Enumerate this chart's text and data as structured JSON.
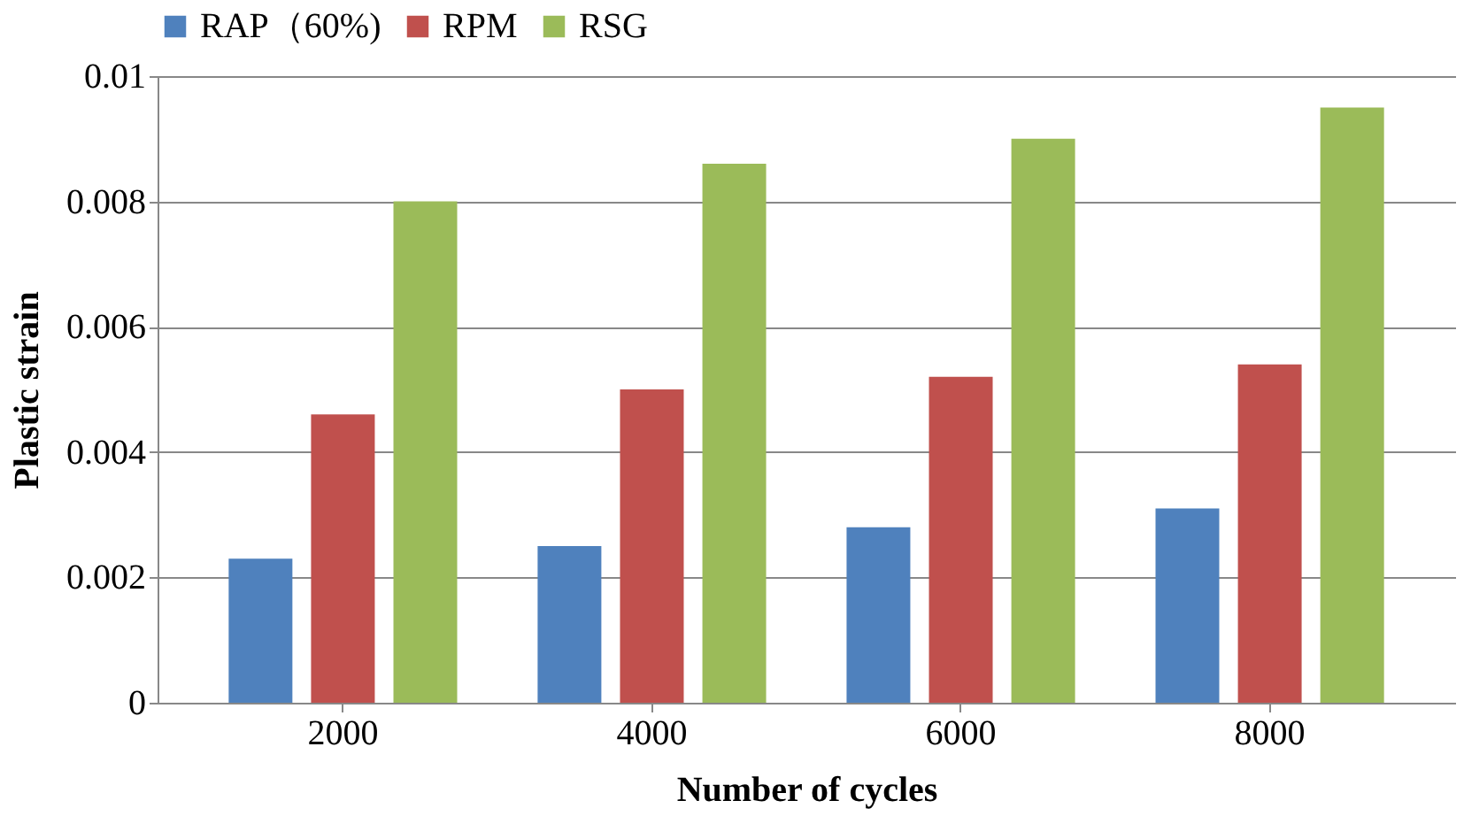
{
  "chart_data": {
    "type": "bar",
    "xlabel": "Number of cycles",
    "ylabel": "Plastic strain",
    "categories": [
      "2000",
      "4000",
      "6000",
      "8000"
    ],
    "series": [
      {
        "name": "RAP（60%)",
        "color": "#4f81bd",
        "values": [
          0.0023,
          0.0025,
          0.0028,
          0.0031
        ]
      },
      {
        "name": "RPM",
        "color": "#c0504d",
        "values": [
          0.0046,
          0.005,
          0.0052,
          0.0054
        ]
      },
      {
        "name": "RSG",
        "color": "#9bbb59",
        "values": [
          0.008,
          0.0086,
          0.009,
          0.0095
        ]
      }
    ],
    "ylim": [
      0,
      0.01
    ],
    "yticks": [
      0,
      0.002,
      0.004,
      0.006,
      0.008,
      0.01
    ],
    "grid": "y",
    "legend": "top"
  }
}
